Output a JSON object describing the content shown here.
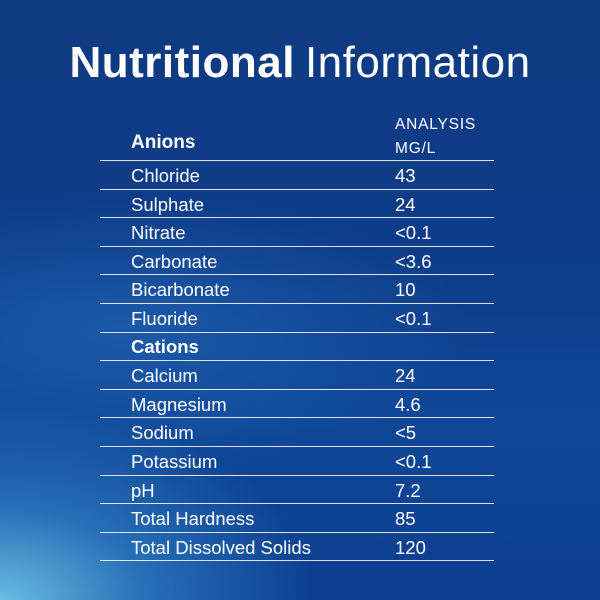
{
  "title": {
    "bold": "Nutritional",
    "light": "Information"
  },
  "header": {
    "section": "Anions",
    "column_line1": "ANALYSIS",
    "column_line2": "MG/L"
  },
  "anions": [
    {
      "name": "Chloride",
      "value": "43"
    },
    {
      "name": "Sulphate",
      "value": "24"
    },
    {
      "name": "Nitrate",
      "value": "<0.1"
    },
    {
      "name": "Carbonate",
      "value": "<3.6"
    },
    {
      "name": "Bicarbonate",
      "value": "10"
    },
    {
      "name": "Fluoride",
      "value": "<0.1"
    }
  ],
  "cations_label": "Cations",
  "cations": [
    {
      "name": "Calcium",
      "value": "24"
    },
    {
      "name": "Magnesium",
      "value": "4.6"
    },
    {
      "name": "Sodium",
      "value": "<5"
    },
    {
      "name": "Potassium",
      "value": "<0.1"
    },
    {
      "name": "pH",
      "value": "7.2"
    },
    {
      "name": "Total Hardness",
      "value": "85"
    },
    {
      "name": "Total Dissolved Solids",
      "value": "120"
    }
  ],
  "colors": {
    "background": "#0d3b86",
    "text": "#ffffff",
    "accent_glow": "#78d2f0"
  }
}
